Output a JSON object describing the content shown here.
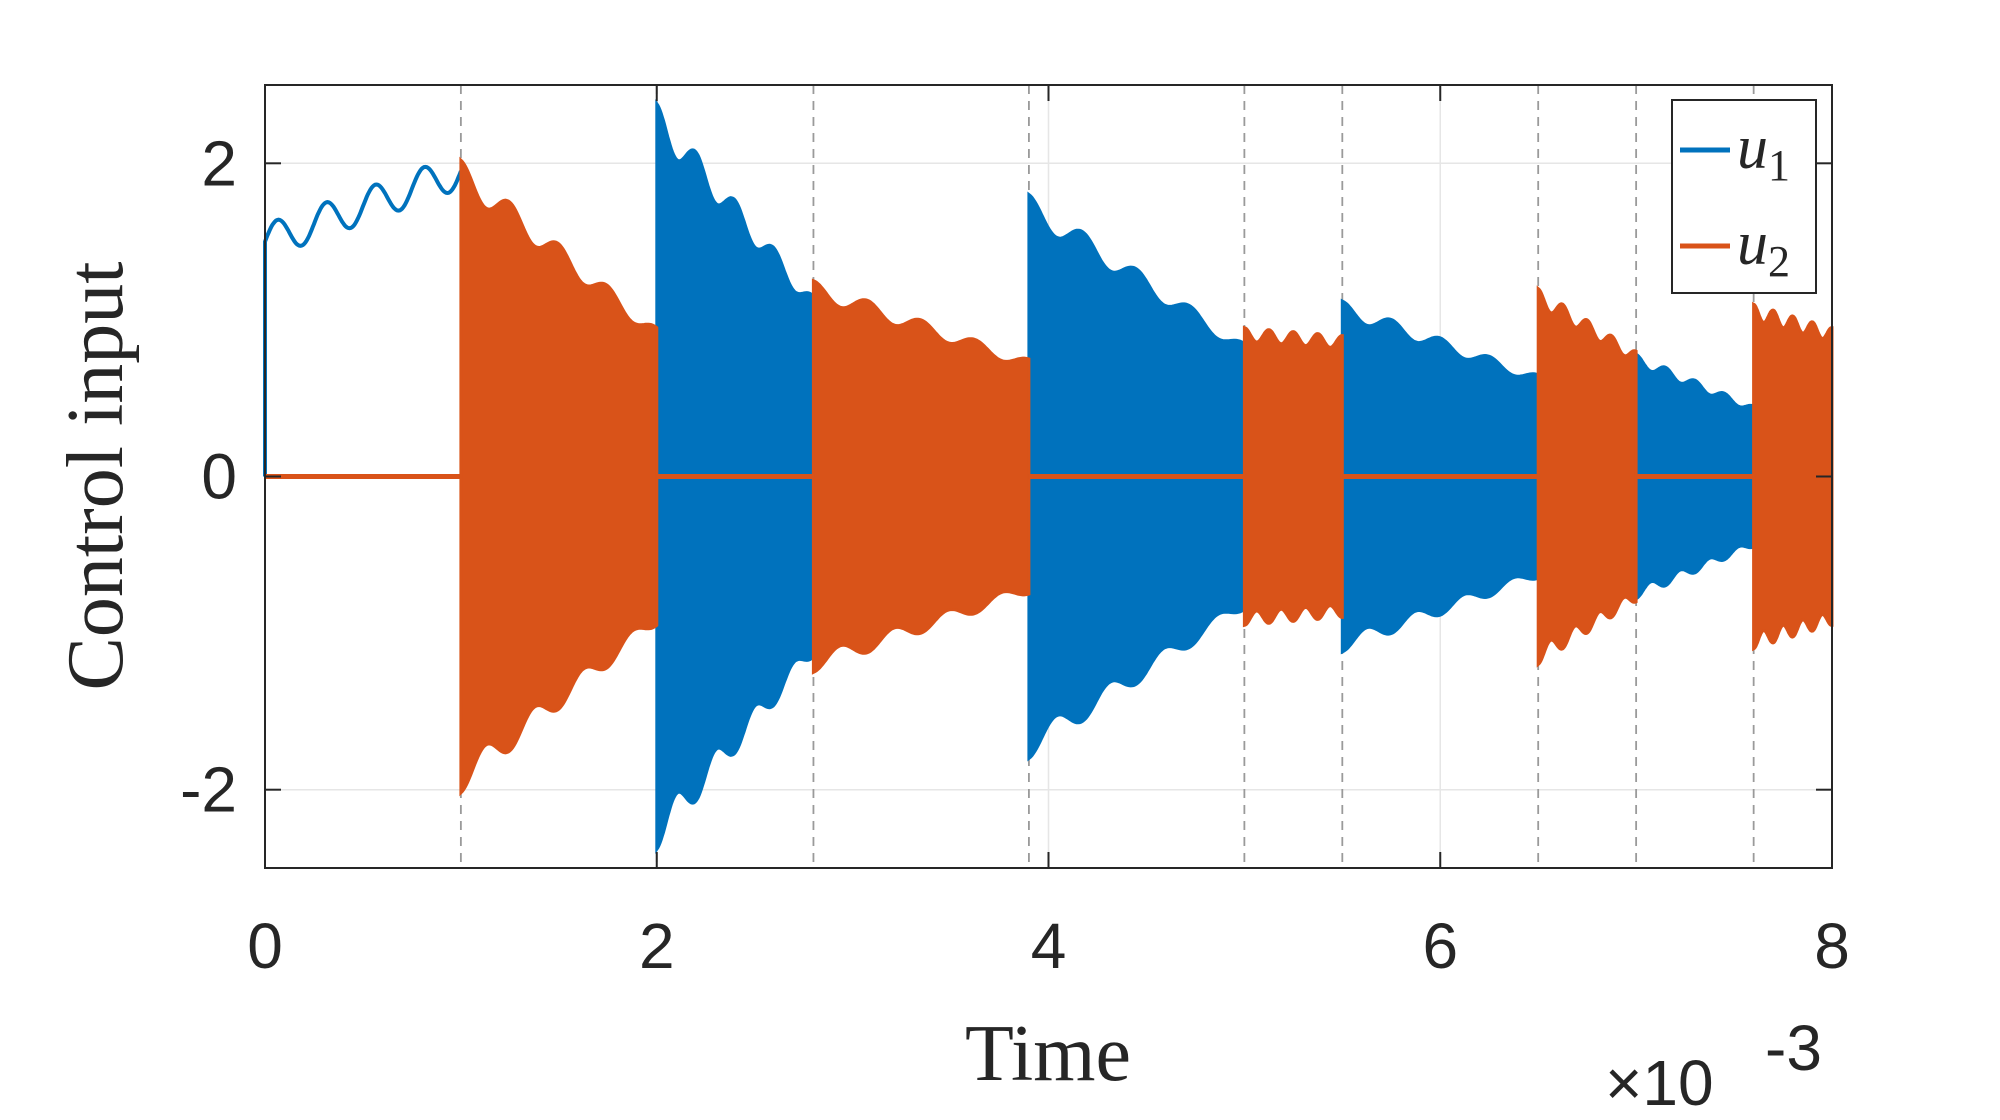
{
  "chart_data": {
    "type": "line",
    "xlabel": "Time",
    "ylabel": "Control input",
    "x_exponent_label": "×10",
    "x_exponent_power": "-3",
    "xlim": [
      0,
      8
    ],
    "ylim": [
      -2.5,
      2.5
    ],
    "xticks": [
      "0",
      "2",
      "4",
      "6",
      "8"
    ],
    "xtick_values": [
      0,
      2,
      4,
      6,
      8
    ],
    "yticks": [
      "-2",
      "0",
      "2"
    ],
    "ytick_values": [
      -2,
      0,
      2
    ],
    "grid": true,
    "legend_position": "top-right",
    "switch_times": [
      1.0,
      2.0,
      2.8,
      3.9,
      5.0,
      5.5,
      6.5,
      7.0,
      7.6
    ],
    "series": [
      {
        "name": "u",
        "subscript": "1",
        "color": "#0072BD"
      },
      {
        "name": "u",
        "subscript": "2",
        "color": "#D95319"
      }
    ],
    "segments": [
      {
        "active": 1,
        "start": 0.0,
        "end": 1.0,
        "mode": "smooth",
        "base_start": 1.5,
        "base_end": 1.95
      },
      {
        "active": 2,
        "start": 1.0,
        "end": 2.0,
        "mode": "oscillate",
        "amp_start": 2.02,
        "amp_end": 0.95
      },
      {
        "active": 1,
        "start": 2.0,
        "end": 2.8,
        "mode": "oscillate",
        "amp_start": 2.38,
        "amp_end": 1.15
      },
      {
        "active": 2,
        "start": 2.8,
        "end": 3.9,
        "mode": "oscillate",
        "amp_start": 1.25,
        "amp_end": 0.75
      },
      {
        "active": 1,
        "start": 3.9,
        "end": 5.0,
        "mode": "oscillate",
        "amp_start": 1.8,
        "amp_end": 0.85
      },
      {
        "active": 2,
        "start": 5.0,
        "end": 5.5,
        "mode": "oscillate",
        "amp_start": 0.95,
        "amp_end": 0.9
      },
      {
        "active": 1,
        "start": 5.5,
        "end": 6.5,
        "mode": "oscillate",
        "amp_start": 1.12,
        "amp_end": 0.65
      },
      {
        "active": 2,
        "start": 6.5,
        "end": 7.0,
        "mode": "oscillate",
        "amp_start": 1.2,
        "amp_end": 0.8
      },
      {
        "active": 1,
        "start": 7.0,
        "end": 7.6,
        "mode": "oscillate",
        "amp_start": 0.78,
        "amp_end": 0.45
      },
      {
        "active": 2,
        "start": 7.6,
        "end": 8.0,
        "mode": "oscillate",
        "amp_start": 1.1,
        "amp_end": 0.95
      }
    ]
  }
}
